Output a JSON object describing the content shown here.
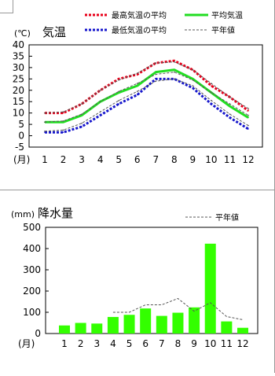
{
  "chart_data": [
    {
      "type": "line",
      "unit": "(℃)",
      "title": "気温",
      "x_unit": "(月)",
      "categories": [
        "1",
        "2",
        "3",
        "4",
        "5",
        "6",
        "7",
        "8",
        "9",
        "10",
        "11",
        "12"
      ],
      "ylim": [
        -5,
        40
      ],
      "yticks": [
        -5,
        0,
        5,
        10,
        15,
        20,
        25,
        30,
        35,
        40
      ],
      "series": [
        {
          "name": "最高気温の平均",
          "color": "#e8001a",
          "style": "dotted-thick",
          "values": [
            10,
            10,
            14,
            20,
            25,
            27,
            32,
            33,
            29,
            22,
            17,
            11
          ]
        },
        {
          "name": "平均気温",
          "color": "#22dd22",
          "style": "solid",
          "values": [
            6,
            6,
            9,
            15,
            19,
            22,
            28,
            29,
            25,
            19,
            13,
            8
          ]
        },
        {
          "name": "最低気温の平均",
          "color": "#1616cc",
          "style": "dotted-thick",
          "values": [
            1.5,
            1.5,
            4,
            9,
            14,
            18,
            25,
            25,
            21,
            14,
            8,
            3
          ]
        },
        {
          "name": "平年値",
          "color": "#555555",
          "style": "dashed-thin",
          "values": [
            10,
            10.5,
            14,
            20,
            24.5,
            27.5,
            32,
            32.5,
            29,
            23,
            17,
            12
          ]
        },
        {
          "name": "平年値",
          "color": "#555555",
          "style": "dashed-thin",
          "legend": false,
          "values": [
            6,
            6.5,
            9.5,
            15,
            19.5,
            23,
            27,
            28,
            24.5,
            19,
            14,
            9
          ]
        },
        {
          "name": "平年値",
          "color": "#555555",
          "style": "dashed-thin",
          "legend": false,
          "values": [
            2,
            2.5,
            5.5,
            10.5,
            15.5,
            19.5,
            24,
            25,
            22,
            15.5,
            9.5,
            4.5
          ]
        }
      ],
      "legend_rows": [
        [
          "最高気温の平均",
          "平均気温"
        ],
        [
          "最低気温の平均",
          "平年値"
        ]
      ],
      "grid": false
    },
    {
      "type": "bar",
      "unit": "(mm)",
      "title": "降水量",
      "x_unit": "(月)",
      "categories": [
        "1",
        "2",
        "3",
        "4",
        "5",
        "6",
        "7",
        "8",
        "9",
        "10",
        "11",
        "12"
      ],
      "ylim": [
        0,
        500
      ],
      "yticks": [
        0,
        100,
        200,
        300,
        400,
        500
      ],
      "bar_color": "#33ff00",
      "values": [
        38,
        50,
        47,
        78,
        88,
        118,
        83,
        98,
        123,
        423,
        57,
        27
      ],
      "normal": {
        "name": "平年値",
        "color": "#555555",
        "values": [
          null,
          null,
          null,
          100,
          100,
          135,
          135,
          165,
          105,
          145,
          80,
          65
        ]
      },
      "grid": false
    }
  ]
}
